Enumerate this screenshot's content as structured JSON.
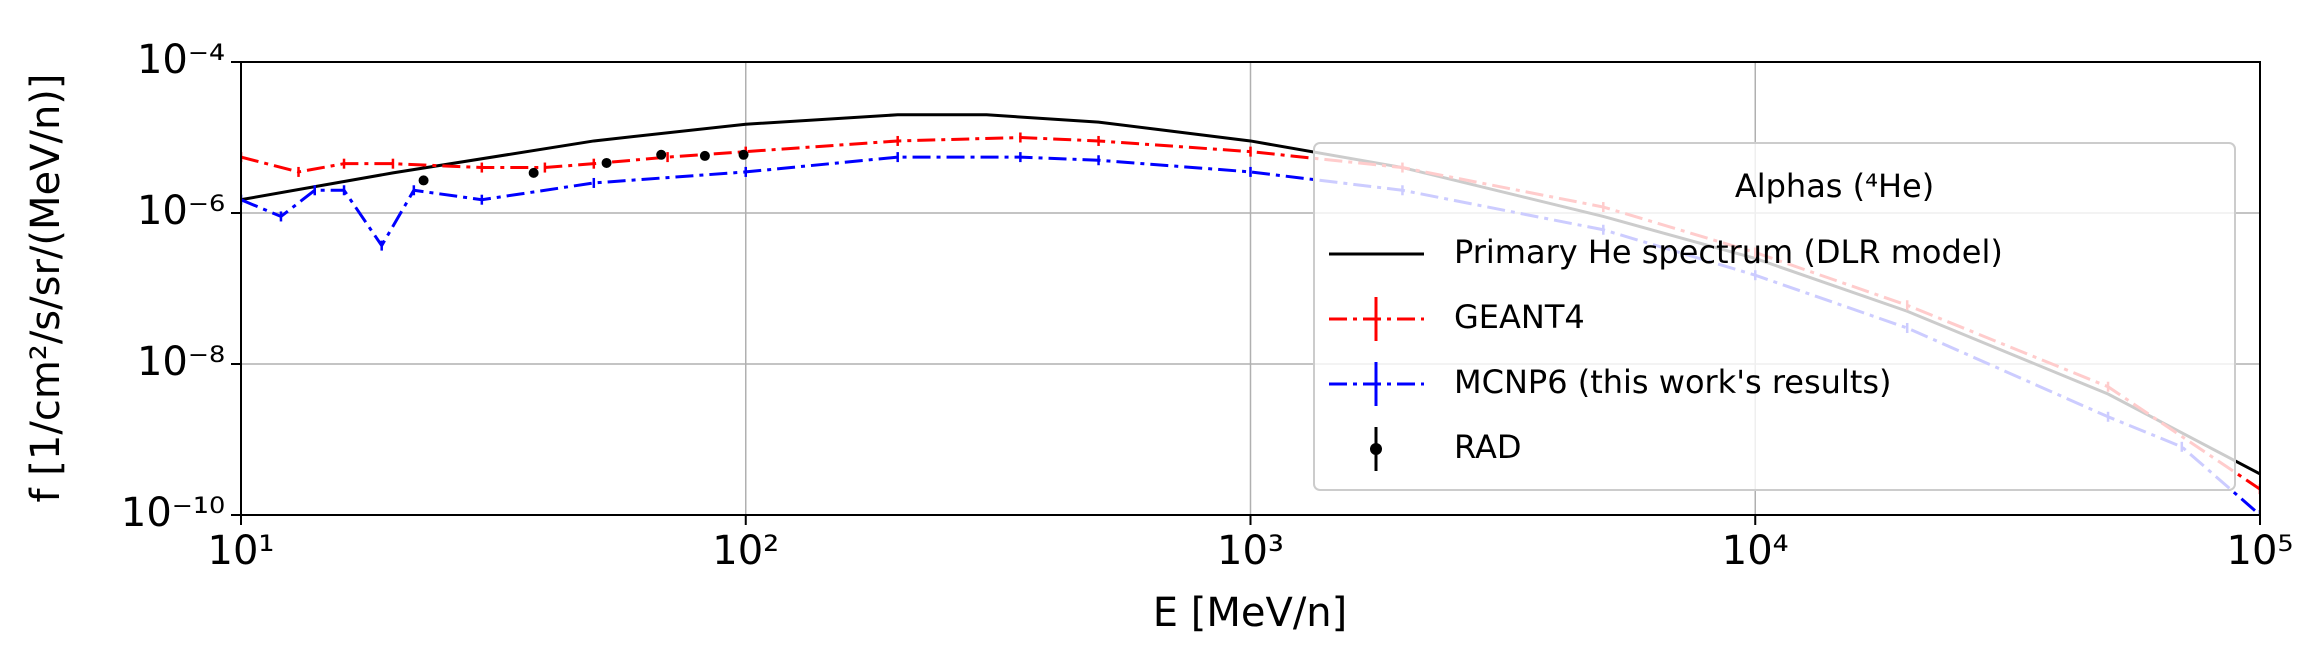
{
  "chart_data": {
    "type": "line",
    "xlabel": "E [MeV/n]",
    "ylabel": "f [1/cm²/s/sr/(MeV/n)]",
    "xscale": "log",
    "yscale": "log",
    "xlim": [
      10,
      100000
    ],
    "ylim": [
      1e-10,
      0.0001
    ],
    "xticks": [
      {
        "value": 10,
        "label": "10¹"
      },
      {
        "value": 100,
        "label": "10²"
      },
      {
        "value": 1000,
        "label": "10³"
      },
      {
        "value": 10000,
        "label": "10⁴"
      },
      {
        "value": 100000,
        "label": "10⁵"
      }
    ],
    "yticks": [
      {
        "value": 1e-10,
        "label": "10⁻¹⁰"
      },
      {
        "value": 1e-08,
        "label": "10⁻⁸"
      },
      {
        "value": 1e-06,
        "label": "10⁻⁶"
      },
      {
        "value": 0.0001,
        "label": "10⁻⁴"
      }
    ],
    "grid": true,
    "legend_title": "Alphas (⁴He)",
    "legend_loc": "center right",
    "series": [
      {
        "name": "Primary He spectrum (DLR model)",
        "color": "#000000",
        "linestyle": "solid",
        "marker": "none",
        "x": [
          10,
          20,
          50,
          100,
          200,
          300,
          500,
          1000,
          2000,
          5000,
          10000,
          20000,
          50000,
          100000
        ],
        "values": [
          1.5e-06,
          3.4e-06,
          9e-06,
          1.5e-05,
          2e-05,
          2e-05,
          1.6e-05,
          9e-06,
          4e-06,
          9e-07,
          2.5e-07,
          5e-08,
          4e-09,
          3.5e-10
        ]
      },
      {
        "name": "GEANT4",
        "color": "#ff0000",
        "linestyle": "dashdot",
        "marker": "errorbar",
        "x": [
          10,
          13,
          16,
          20,
          30,
          40,
          50,
          70,
          100,
          200,
          350,
          500,
          1000,
          2000,
          5000,
          10000,
          20000,
          50000,
          100000
        ],
        "values": [
          5.5e-06,
          3.5e-06,
          4.5e-06,
          4.5e-06,
          4e-06,
          4e-06,
          4.5e-06,
          5.5e-06,
          6.5e-06,
          9e-06,
          1e-05,
          9e-06,
          6.5e-06,
          4e-06,
          1.2e-06,
          3e-07,
          6e-08,
          5e-09,
          2.2e-10
        ]
      },
      {
        "name": "MCNP6 (this work's results)",
        "color": "#0000ff",
        "linestyle": "dashdot",
        "marker": "errorbar",
        "x": [
          10,
          12,
          14,
          16,
          19,
          22,
          30,
          50,
          100,
          200,
          350,
          500,
          1000,
          2000,
          5000,
          10000,
          20000,
          50000,
          70000,
          100000
        ],
        "values": [
          1.5e-06,
          9e-07,
          2e-06,
          2e-06,
          3.7e-07,
          2e-06,
          1.5e-06,
          2.5e-06,
          3.5e-06,
          5.5e-06,
          5.5e-06,
          5e-06,
          3.5e-06,
          2e-06,
          6e-07,
          1.5e-07,
          3e-08,
          2e-09,
          8e-10,
          1e-10
        ]
      },
      {
        "name": "RAD",
        "color": "#000000",
        "linestyle": "none",
        "marker": "o",
        "x": [
          23,
          38,
          53,
          68,
          83,
          99
        ],
        "values": [
          2.7e-06,
          3.4e-06,
          4.6e-06,
          5.9e-06,
          5.7e-06,
          5.9e-06
        ]
      }
    ]
  }
}
